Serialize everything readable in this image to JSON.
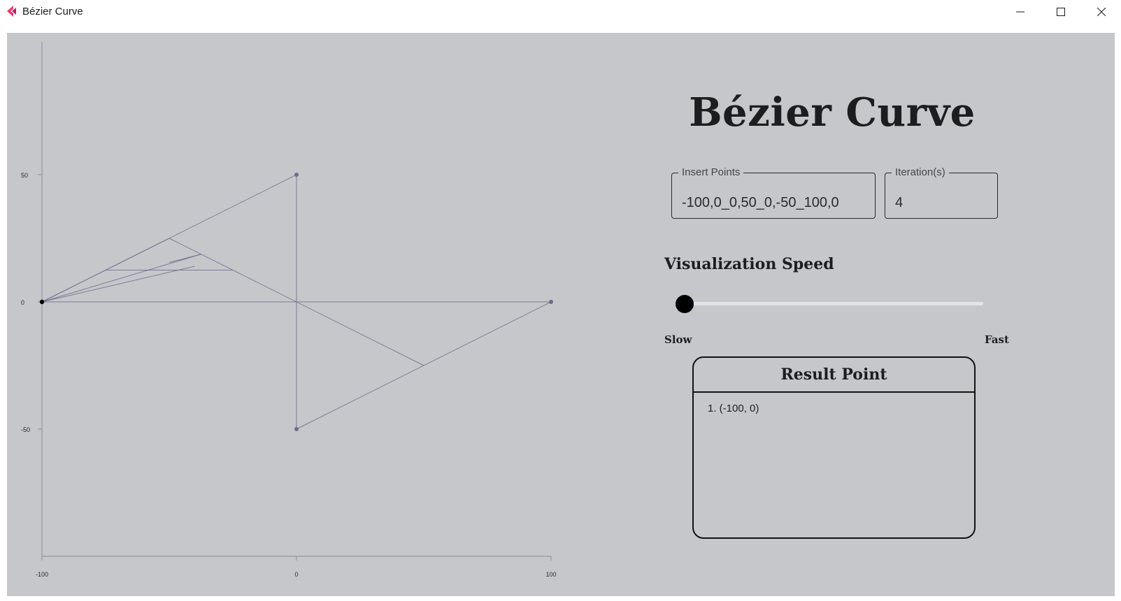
{
  "window": {
    "title": "Bézier Curve",
    "accent": "#e83a6d",
    "controls": [
      "minimize-icon",
      "maximize-icon",
      "close-icon"
    ]
  },
  "app": {
    "heading": "Bézier Curve",
    "points_field": {
      "label": "Insert Points",
      "value": "-100,0_0,50_0,-50_100,0"
    },
    "iterations_field": {
      "label": "Iteration(s)",
      "value": "4"
    },
    "speed": {
      "label": "Visualization Speed",
      "slow_label": "Slow",
      "fast_label": "Fast",
      "value": 0
    },
    "result": {
      "title": "Result Point",
      "items": [
        "1. (-100, 0)"
      ]
    }
  },
  "colors": {
    "background": "#c6c7cb",
    "construction_line": "#6e6d8a",
    "axis": "#8c8c94",
    "text": "#1d1d1f"
  },
  "chart_data": {
    "type": "line",
    "x_ticks": [
      -100,
      0,
      100
    ],
    "y_ticks": [
      50,
      0,
      -50
    ],
    "xlim": [
      -100,
      100
    ],
    "ylim": [
      -100,
      100
    ],
    "control_points": [
      [
        -100,
        0
      ],
      [
        0,
        50
      ],
      [
        0,
        -50
      ],
      [
        100,
        0
      ]
    ],
    "result_point": [
      -100,
      0
    ],
    "construction_segments": [
      [
        [
          -100,
          0
        ],
        [
          0,
          50
        ]
      ],
      [
        [
          0,
          50
        ],
        [
          0,
          -50
        ]
      ],
      [
        [
          0,
          -50
        ],
        [
          100,
          0
        ]
      ],
      [
        [
          -100,
          0
        ],
        [
          100,
          0
        ]
      ],
      [
        [
          -50,
          25
        ],
        [
          50,
          -25
        ]
      ],
      [
        [
          -100,
          0
        ],
        [
          -50,
          25
        ]
      ],
      [
        [
          -75,
          12.5
        ],
        [
          -25,
          12.5
        ]
      ],
      [
        [
          -50,
          15.5
        ],
        [
          -37.5,
          18.75
        ]
      ],
      [
        [
          -100,
          0
        ],
        [
          -37.5,
          18.75
        ]
      ],
      [
        [
          -100,
          0
        ],
        [
          -40,
          14
        ]
      ]
    ]
  }
}
